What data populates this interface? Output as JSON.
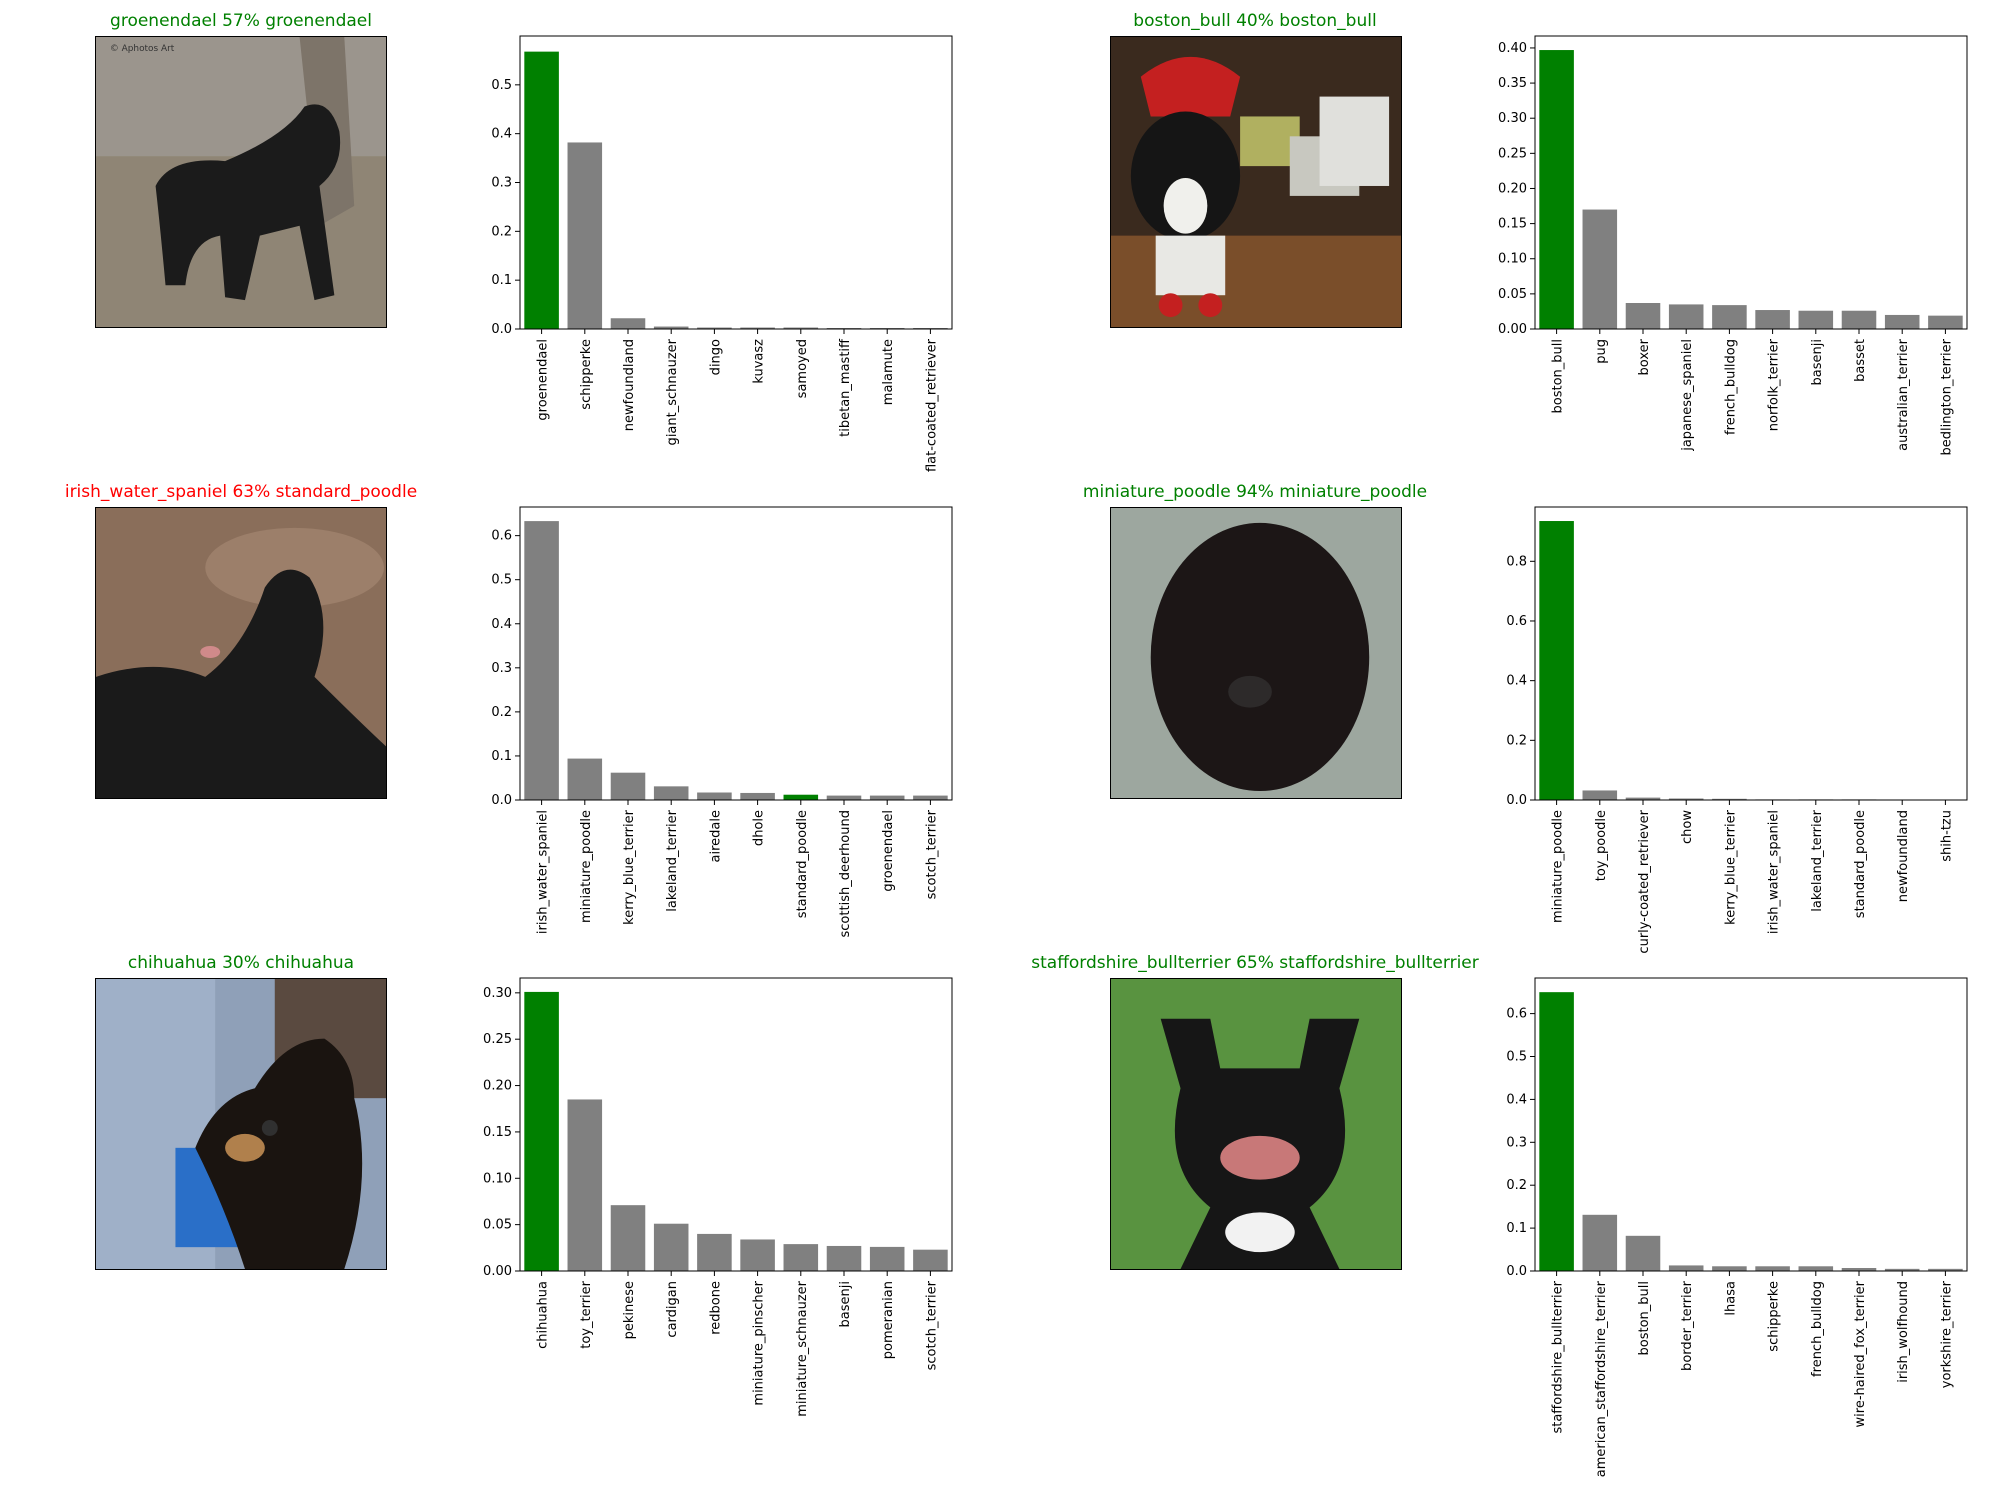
{
  "colors": {
    "correct": "#008000",
    "incorrect": "#ff0000",
    "other": "#808080"
  },
  "panels": [
    {
      "title": "groenendael 57% groenendael",
      "title_color": "#008000",
      "image_icon": "black-dog-photo",
      "image_watermark": "© Aphotos Art",
      "chart_data": {
        "type": "bar",
        "categories": [
          "groenendael",
          "schipperke",
          "newfoundland",
          "giant_schnauzer",
          "dingo",
          "kuvasz",
          "samoyed",
          "tibetan_mastiff",
          "malamute",
          "flat-coated_retriever"
        ],
        "values": [
          0.568,
          0.382,
          0.022,
          0.005,
          0.003,
          0.003,
          0.003,
          0.002,
          0.002,
          0.002
        ],
        "highlight_index": 0,
        "ylim": [
          0,
          0.6
        ],
        "yticks": [
          "0.0",
          "0.1",
          "0.2",
          "0.3",
          "0.4",
          "0.5"
        ],
        "ytick_values": [
          0,
          0.1,
          0.2,
          0.3,
          0.4,
          0.5
        ]
      }
    },
    {
      "title": "boston_bull 40% boston_bull",
      "title_color": "#008000",
      "image_icon": "boston-terrier-photo",
      "chart_data": {
        "type": "bar",
        "categories": [
          "boston_bull",
          "pug",
          "boxer",
          "japanese_spaniel",
          "french_bulldog",
          "norfolk_terrier",
          "basenji",
          "basset",
          "australian_terrier",
          "bedlington_terrier"
        ],
        "values": [
          0.397,
          0.17,
          0.037,
          0.035,
          0.034,
          0.027,
          0.026,
          0.026,
          0.02,
          0.019
        ],
        "highlight_index": 0,
        "ylim": [
          0,
          0.417
        ],
        "yticks": [
          "0.00",
          "0.05",
          "0.10",
          "0.15",
          "0.20",
          "0.25",
          "0.30",
          "0.35",
          "0.40"
        ],
        "ytick_values": [
          0,
          0.05,
          0.1,
          0.15,
          0.2,
          0.25,
          0.3,
          0.35,
          0.4
        ]
      }
    },
    {
      "title": "irish_water_spaniel 63% standard_poodle",
      "title_color": "#ff0000",
      "image_icon": "poodle-photo",
      "chart_data": {
        "type": "bar",
        "categories": [
          "irish_water_spaniel",
          "miniature_poodle",
          "kerry_blue_terrier",
          "lakeland_terrier",
          "airedale",
          "dhole",
          "standard_poodle",
          "scottish_deerhound",
          "groenendael",
          "scotch_terrier"
        ],
        "values": [
          0.633,
          0.094,
          0.062,
          0.031,
          0.017,
          0.016,
          0.012,
          0.01,
          0.01,
          0.01
        ],
        "highlight_index": 6,
        "ylim": [
          0,
          0.665
        ],
        "yticks": [
          "0.0",
          "0.1",
          "0.2",
          "0.3",
          "0.4",
          "0.5",
          "0.6"
        ],
        "ytick_values": [
          0,
          0.1,
          0.2,
          0.3,
          0.4,
          0.5,
          0.6
        ]
      }
    },
    {
      "title": "miniature_poodle 94% miniature_poodle",
      "title_color": "#008000",
      "image_icon": "miniature-poodle-photo",
      "chart_data": {
        "type": "bar",
        "categories": [
          "miniature_poodle",
          "toy_poodle",
          "curly-coated_retriever",
          "chow",
          "kerry_blue_terrier",
          "irish_water_spaniel",
          "lakeland_terrier",
          "standard_poodle",
          "newfoundland",
          "shih-tzu"
        ],
        "values": [
          0.935,
          0.032,
          0.008,
          0.005,
          0.004,
          0.002,
          0.002,
          0.002,
          0.001,
          0.001
        ],
        "highlight_index": 0,
        "ylim": [
          0,
          0.982
        ],
        "yticks": [
          "0.0",
          "0.2",
          "0.4",
          "0.6",
          "0.8"
        ],
        "ytick_values": [
          0,
          0.2,
          0.4,
          0.6,
          0.8
        ]
      }
    },
    {
      "title": "chihuahua 30% chihuahua",
      "title_color": "#008000",
      "image_icon": "chihuahua-photo",
      "chart_data": {
        "type": "bar",
        "categories": [
          "chihuahua",
          "toy_terrier",
          "pekinese",
          "cardigan",
          "redbone",
          "miniature_pinscher",
          "miniature_schnauzer",
          "basenji",
          "pomeranian",
          "scotch_terrier"
        ],
        "values": [
          0.301,
          0.185,
          0.071,
          0.051,
          0.04,
          0.034,
          0.029,
          0.027,
          0.026,
          0.023
        ],
        "highlight_index": 0,
        "ylim": [
          0,
          0.316
        ],
        "yticks": [
          "0.00",
          "0.05",
          "0.10",
          "0.15",
          "0.20",
          "0.25",
          "0.30"
        ],
        "ytick_values": [
          0,
          0.05,
          0.1,
          0.15,
          0.2,
          0.25,
          0.3
        ]
      }
    },
    {
      "title": "staffordshire_bullterrier 65% staffordshire_bullterrier",
      "title_color": "#008000",
      "image_icon": "staffordshire-bullterrier-photo",
      "chart_data": {
        "type": "bar",
        "categories": [
          "staffordshire_bullterrier",
          "american_staffordshire_terrier",
          "boston_bull",
          "border_terrier",
          "lhasa",
          "schipperke",
          "french_bulldog",
          "wire-haired_fox_terrier",
          "irish_wolfhound",
          "yorkshire_terrier"
        ],
        "values": [
          0.65,
          0.131,
          0.082,
          0.013,
          0.011,
          0.011,
          0.011,
          0.007,
          0.005,
          0.005
        ],
        "highlight_index": 0,
        "ylim": [
          0,
          0.683
        ],
        "yticks": [
          "0.0",
          "0.1",
          "0.2",
          "0.3",
          "0.4",
          "0.5",
          "0.6"
        ],
        "ytick_values": [
          0,
          0.1,
          0.2,
          0.3,
          0.4,
          0.5,
          0.6
        ]
      }
    }
  ]
}
